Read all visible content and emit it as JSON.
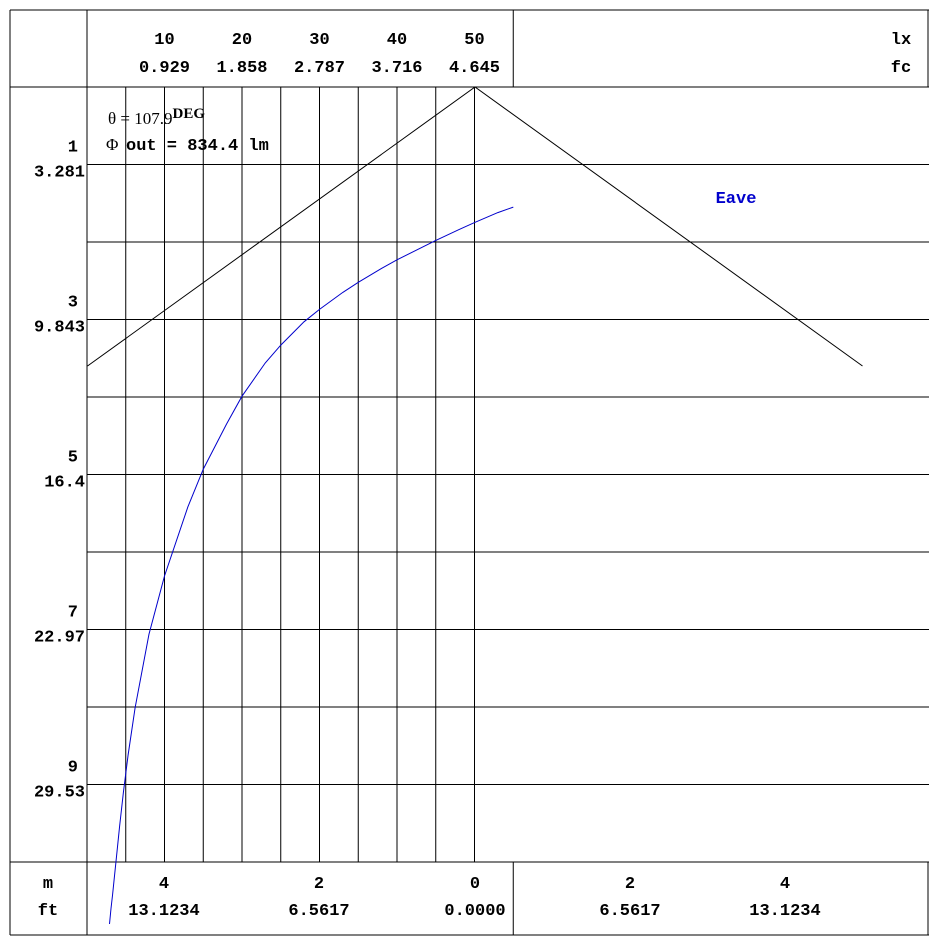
{
  "chart_data": {
    "type": "line",
    "top_axis": {
      "unit_labels": [
        "lx",
        "fc"
      ],
      "ticks": [
        {
          "lx": "10",
          "fc": "0.929"
        },
        {
          "lx": "20",
          "fc": "1.858"
        },
        {
          "lx": "30",
          "fc": "2.787"
        },
        {
          "lx": "40",
          "fc": "3.716"
        },
        {
          "lx": "50",
          "fc": "4.645"
        }
      ],
      "range_lx": [
        0,
        55
      ]
    },
    "left_axis": {
      "ticks": [
        {
          "m": "1",
          "ft": "3.281"
        },
        {
          "m": "3",
          "ft": "9.843"
        },
        {
          "m": "5",
          "ft": "16.4"
        },
        {
          "m": "7",
          "ft": "22.97"
        },
        {
          "m": "9",
          "ft": "29.53"
        }
      ],
      "range_m": [
        0,
        10
      ]
    },
    "bottom_axis": {
      "unit_labels": [
        "m",
        "ft"
      ],
      "ticks": [
        {
          "m": "4",
          "ft": "13.1234"
        },
        {
          "m": "2",
          "ft": "6.5617"
        },
        {
          "m": "0",
          "ft": "0.0000"
        },
        {
          "m": "2",
          "ft": "6.5617"
        },
        {
          "m": "4",
          "ft": "13.1234"
        }
      ],
      "range_m": [
        -5,
        5
      ]
    },
    "annotations": {
      "theta_prefix": "θ = 107.9",
      "theta_unit": "DEG",
      "flux_symbol": "Φ",
      "flux_text": "out = 834.4 lm"
    },
    "beam_cone": {
      "apex": [
        0,
        0
      ],
      "left_end": [
        -5,
        3.6
      ],
      "right_end": [
        5,
        3.6
      ]
    },
    "series": [
      {
        "name": "Eave",
        "color": "#0000cc",
        "x_illuminance_lx": [
          55,
          53,
          50,
          48,
          45,
          43,
          40,
          38,
          35,
          33,
          30,
          28,
          25,
          23,
          20,
          18,
          15,
          13,
          10,
          8,
          6.2,
          5.3,
          4.7,
          4.2,
          3.8,
          3.5,
          3.3,
          3.1,
          2.9
        ],
        "y_height_m": [
          1.55,
          1.62,
          1.75,
          1.84,
          1.98,
          2.08,
          2.23,
          2.34,
          2.52,
          2.65,
          2.87,
          3.03,
          3.33,
          3.56,
          3.99,
          4.35,
          4.93,
          5.42,
          6.31,
          7.06,
          8.01,
          8.62,
          9.1,
          9.54,
          9.93,
          10.23,
          10.42,
          10.6,
          10.8
        ]
      }
    ],
    "grid": true
  }
}
